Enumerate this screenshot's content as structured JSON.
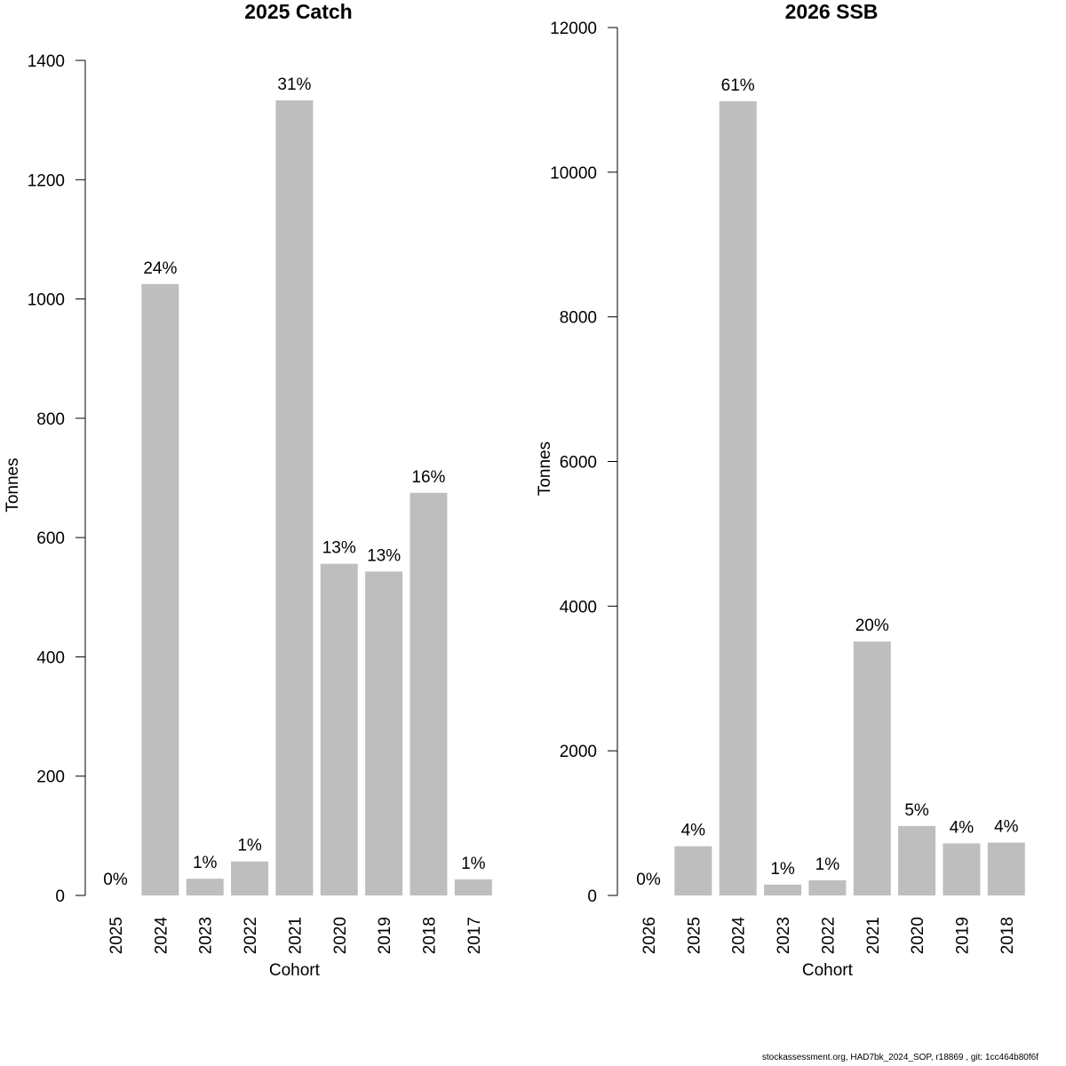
{
  "footer": "stockassessment.org, HAD7bk_2024_SOP, r18869 , git: 1cc464b80f6f",
  "chart_data": [
    {
      "type": "bar",
      "title": "2025 Catch",
      "xlabel": "Cohort",
      "ylabel": "Tonnes",
      "ylim": [
        0,
        1400
      ],
      "yticks": [
        0,
        200,
        400,
        600,
        800,
        1000,
        1200,
        1400
      ],
      "categories": [
        "2025",
        "2024",
        "2023",
        "2022",
        "2021",
        "2020",
        "2019",
        "2018",
        "2017"
      ],
      "values": [
        0,
        1025,
        28,
        57,
        1333,
        556,
        543,
        675,
        27
      ],
      "labels": [
        "0%",
        "24%",
        "1%",
        "1%",
        "31%",
        "13%",
        "13%",
        "16%",
        "1%"
      ],
      "bar_color": "#bebebe"
    },
    {
      "type": "bar",
      "title": "2026 SSB",
      "xlabel": "Cohort",
      "ylabel": "Tonnes",
      "ylim": [
        0,
        12000
      ],
      "yticks": [
        0,
        2000,
        4000,
        6000,
        8000,
        10000,
        12000
      ],
      "categories": [
        "2026",
        "2025",
        "2024",
        "2023",
        "2022",
        "2021",
        "2020",
        "2019",
        "2018"
      ],
      "values": [
        0,
        680,
        10980,
        150,
        210,
        3510,
        960,
        720,
        730
      ],
      "labels": [
        "0%",
        "4%",
        "61%",
        "1%",
        "1%",
        "20%",
        "5%",
        "4%",
        "4%"
      ],
      "bar_color": "#bebebe"
    }
  ]
}
